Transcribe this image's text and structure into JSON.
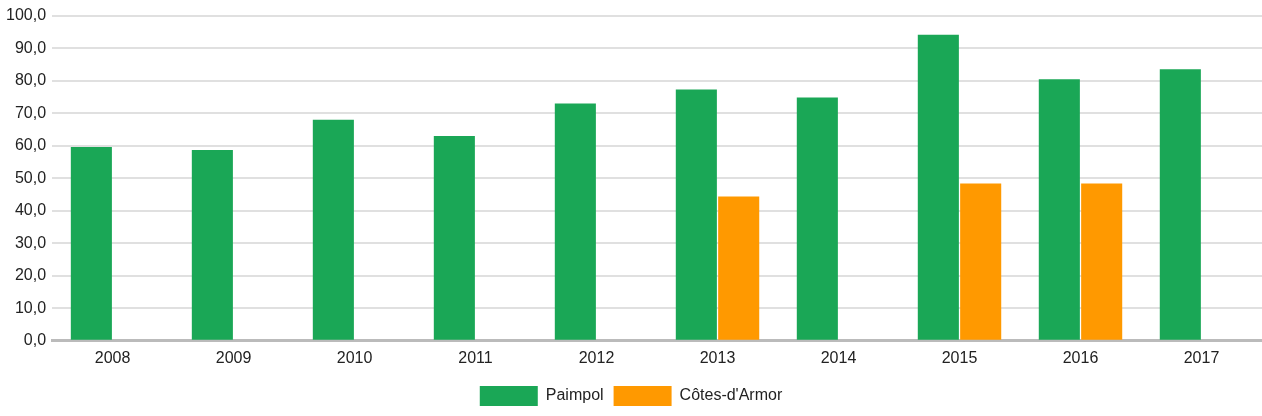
{
  "chart_data": {
    "type": "bar",
    "categories": [
      "2008",
      "2009",
      "2010",
      "2011",
      "2012",
      "2013",
      "2014",
      "2015",
      "2016",
      "2017"
    ],
    "series": [
      {
        "name": "Paimpol",
        "color": "#1aa756",
        "values": [
          59.6,
          58.7,
          68.0,
          63.0,
          73.0,
          77.3,
          74.8,
          94.1,
          80.4,
          83.5
        ]
      },
      {
        "name": "Côtes-d'Armor",
        "color": "#ff9900",
        "values": [
          null,
          null,
          null,
          null,
          null,
          44.4,
          null,
          48.4,
          48.4,
          null
        ]
      }
    ],
    "ylim": [
      0,
      100
    ],
    "yticks": [
      {
        "value": 0,
        "label": "0,0"
      },
      {
        "value": 10,
        "label": "10,0"
      },
      {
        "value": 20,
        "label": "20,0"
      },
      {
        "value": 30,
        "label": "30,0"
      },
      {
        "value": 40,
        "label": "40,0"
      },
      {
        "value": 50,
        "label": "50,0"
      },
      {
        "value": 60,
        "label": "60,0"
      },
      {
        "value": 70,
        "label": "70,0"
      },
      {
        "value": 80,
        "label": "80,0"
      },
      {
        "value": 90,
        "label": "90,0"
      },
      {
        "value": 100,
        "label": "100,0"
      }
    ],
    "grid": "y",
    "legend": "bottom"
  }
}
